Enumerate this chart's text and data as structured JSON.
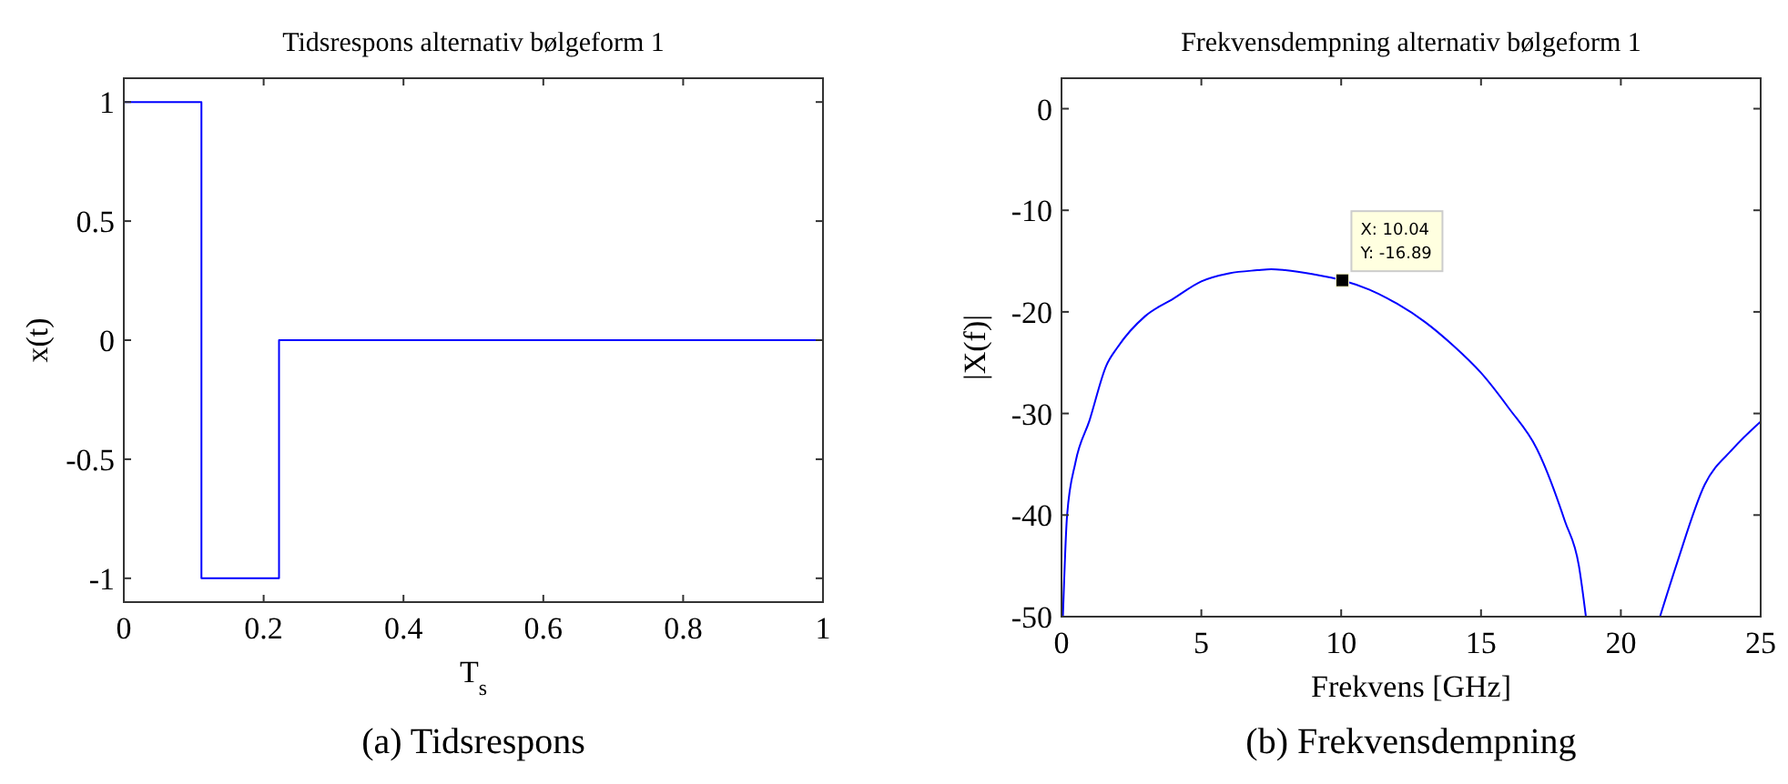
{
  "chart_data": [
    {
      "type": "line",
      "title": "Tidsrespons alternativ bølgeform 1",
      "xlabel": "T$_{s}$",
      "ylabel": "x(t)",
      "annotations": [
        "(a) Tidsrespons"
      ],
      "xlim": [
        0,
        1
      ],
      "ylim": [
        -1.1,
        1.1
      ],
      "xticks": [
        0,
        0.2,
        0.4,
        0.6,
        0.8,
        1
      ],
      "yticks": [
        -1,
        -0.5,
        0,
        0.5,
        1
      ],
      "grid": false,
      "series": [
        {
          "color": "#0000ff",
          "x": [
            0,
            0.111,
            0.111,
            0.222,
            0.222,
            1
          ],
          "values": [
            1,
            1,
            -1,
            -1,
            0,
            0
          ]
        }
      ]
    },
    {
      "type": "line",
      "title": "Frekvensdempning alternativ bølgeform 1",
      "xlabel": "Frekvens [GHz]",
      "ylabel": "|X(f)|",
      "annotations": [
        {
          "text": "X: 10.04\nY: -16.89",
          "x": 10.04,
          "y": -16.89
        },
        "(b) Frekvensdempning"
      ],
      "xlim": [
        0,
        25
      ],
      "ylim": [
        -50,
        3
      ],
      "xticks": [
        0,
        5,
        10,
        15,
        20,
        25
      ],
      "yticks": [
        -50,
        -40,
        -30,
        -20,
        -10,
        0
      ],
      "grid": false,
      "series": [
        {
          "color": "#0000ff",
          "x": [
            0.05,
            0.2,
            0.5,
            1,
            1.6,
            2,
            3,
            4,
            5,
            6,
            7,
            7.5,
            8,
            9,
            10.04,
            11,
            12,
            13,
            14,
            15,
            16,
            17,
            18,
            18.5,
            18.75,
            20,
            21.4,
            22,
            23,
            24,
            25
          ],
          "values": [
            -50,
            -40,
            -34.8,
            -30.7,
            -25.3,
            -23.5,
            -20.4,
            -18.7,
            -17,
            -16.2,
            -15.9,
            -15.8,
            -15.9,
            -16.3,
            -16.89,
            -17.8,
            -19.2,
            -21,
            -23.3,
            -26,
            -29.5,
            -33.5,
            -40.6,
            -45,
            -50,
            null,
            -50,
            -44.8,
            -37,
            -33.5,
            -30.8
          ]
        }
      ]
    }
  ]
}
